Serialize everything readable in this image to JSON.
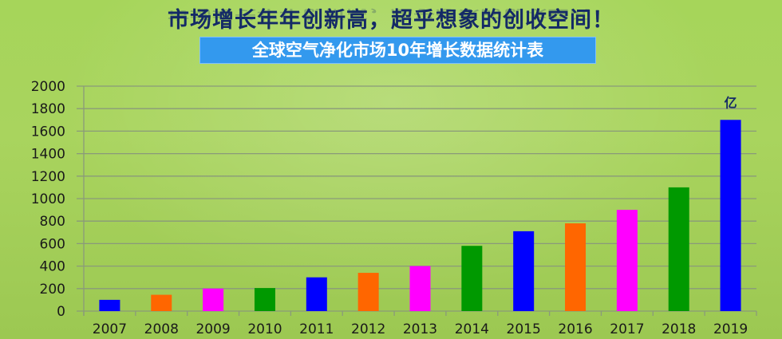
{
  "header": {
    "headline": "市场增长年年创新高，超乎想象的创收空间！",
    "banner": "全球空气净化市场10年增长数据统计表"
  },
  "chart_data": {
    "type": "bar",
    "title": "全球空气净化市场10年增长数据统计表",
    "unit_label": "亿",
    "categories": [
      "2007",
      "2008",
      "2009",
      "2010",
      "2011",
      "2012",
      "2013",
      "2014",
      "2015",
      "2016",
      "2017",
      "2018",
      "2019"
    ],
    "values": [
      100,
      145,
      200,
      205,
      300,
      340,
      400,
      580,
      710,
      780,
      900,
      1100,
      1700
    ],
    "colors": [
      "#0000ff",
      "#ff6600",
      "#ff00ff",
      "#009900",
      "#0000ff",
      "#ff6600",
      "#ff00ff",
      "#009900",
      "#0000ff",
      "#ff6600",
      "#ff00ff",
      "#009900",
      "#0000ff"
    ],
    "ylim": [
      0,
      2000
    ],
    "yticks": [
      0,
      200,
      400,
      600,
      800,
      1000,
      1200,
      1400,
      1600,
      1800,
      2000
    ],
    "grid": true,
    "legend": "none",
    "xlabel": "",
    "ylabel": ""
  }
}
